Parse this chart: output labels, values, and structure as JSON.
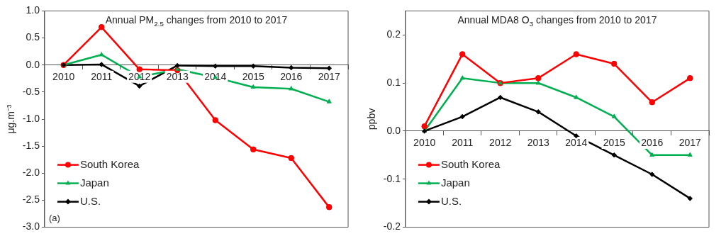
{
  "chart_data": [
    {
      "type": "line",
      "title": "Annual PM$_{2.5}$ changes from 2010 to 2017",
      "ylabel": "μg.m⁻³",
      "categories": [
        "2010",
        "2011",
        "2012",
        "2013",
        "2014",
        "2015",
        "2016",
        "2017"
      ],
      "series": [
        {
          "name": "South Korea",
          "color": "#ff0000",
          "marker": "circle",
          "values": [
            0,
            0.7,
            -0.08,
            -0.1,
            -1.02,
            -1.56,
            -1.72,
            -2.63
          ]
        },
        {
          "name": "Japan",
          "color": "#00b050",
          "marker": "triangle",
          "values": [
            0,
            0.19,
            -0.22,
            -0.08,
            -0.23,
            -0.41,
            -0.44,
            -0.68
          ]
        },
        {
          "name": "U.S.",
          "color": "#000000",
          "marker": "diamond",
          "values": [
            0,
            0.01,
            -0.39,
            -0.01,
            -0.02,
            -0.02,
            -0.05,
            -0.06
          ]
        }
      ],
      "ylim": [
        -3,
        1
      ],
      "yticks": [
        {
          "value": -3,
          "label": "-3.0"
        },
        {
          "value": -2.5,
          "label": "-2.5"
        },
        {
          "value": -2,
          "label": "-2.0"
        },
        {
          "value": -1.5,
          "label": "-1.5"
        },
        {
          "value": -1,
          "label": "-1.0"
        },
        {
          "value": -0.5,
          "label": "-0.5"
        },
        {
          "value": 0,
          "label": "0.0"
        },
        {
          "value": 0.5,
          "label": "0.5"
        },
        {
          "value": 1,
          "label": "1.0"
        }
      ],
      "grid": false,
      "legend": "bottom left",
      "annotations": [
        "(a)"
      ]
    },
    {
      "type": "line",
      "title": "Annual MDA8 O$_{3}$ changes from 2010 to 2017",
      "ylabel": "ppbv",
      "categories": [
        "2010",
        "2011",
        "2012",
        "2013",
        "2014",
        "2015",
        "2016",
        "2017"
      ],
      "series": [
        {
          "name": "South Korea",
          "color": "#ff0000",
          "marker": "circle",
          "values": [
            0.01,
            0.16,
            0.1,
            0.11,
            0.16,
            0.14,
            0.06,
            0.11
          ]
        },
        {
          "name": "Japan",
          "color": "#00b050",
          "marker": "triangle",
          "values": [
            0,
            0.11,
            0.1,
            0.1,
            0.07,
            0.03,
            -0.05,
            -0.05
          ]
        },
        {
          "name": "U.S.",
          "color": "#000000",
          "marker": "diamond",
          "values": [
            0,
            0.03,
            0.07,
            0.04,
            -0.01,
            -0.05,
            -0.09,
            -0.14
          ]
        }
      ],
      "ylim": [
        -0.2,
        0.25
      ],
      "yticks": [
        -0.2,
        -0.1,
        {
          "value": 0,
          "label": "0.0"
        },
        0.1,
        0.2
      ],
      "grid": false,
      "legend": "bottom left"
    }
  ]
}
